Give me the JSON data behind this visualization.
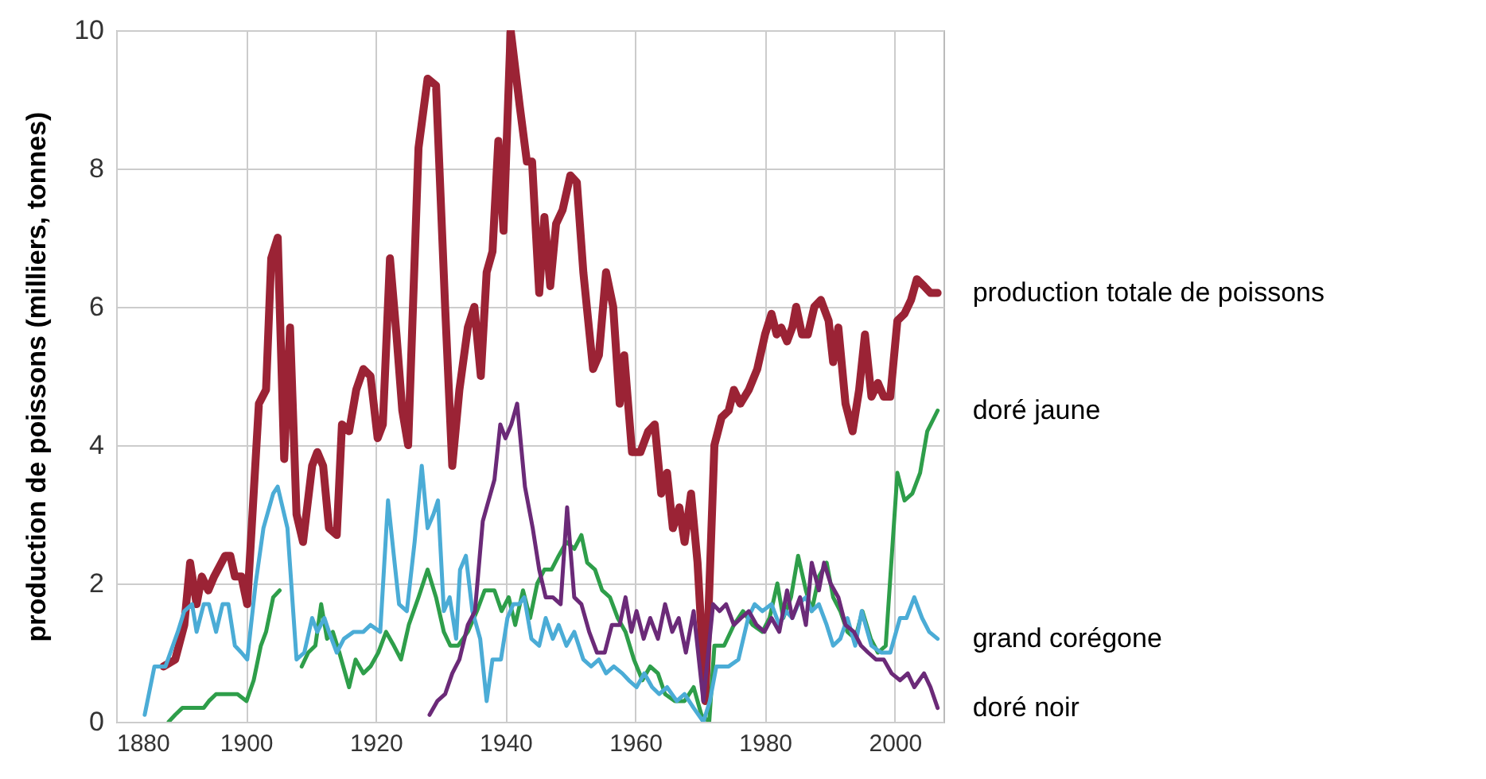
{
  "chart_data": {
    "type": "line",
    "ylabel": "production de poissons (milliers, tonnes)",
    "xlim": [
      1880,
      2007.5
    ],
    "xticks": [
      1880,
      1900,
      1920,
      1940,
      1960,
      1980,
      2000
    ],
    "ylim": [
      0,
      10
    ],
    "yticks": [
      0,
      2,
      4,
      6,
      8,
      10
    ],
    "grid": true,
    "line_style": "solid",
    "series": [
      {
        "name": "production totale de poissons",
        "color": "#9b2335",
        "x": [
          1887.3,
          1889.1,
          1890.5,
          1891.4,
          1892.4,
          1893.2,
          1894.2,
          1895.1,
          1896.8,
          1897.6,
          1898.3,
          1899.3,
          1900.2,
          1902.0,
          1903.1,
          1903.9,
          1904.9,
          1905.9,
          1906.8,
          1907.8,
          1908.8,
          1910.2,
          1911.0,
          1911.9,
          1912.8,
          1914.0,
          1914.8,
          1915.9,
          1917.0,
          1918.1,
          1919.2,
          1920.3,
          1921.1,
          1922.2,
          1923.2,
          1924.1,
          1925.0,
          1926.6,
          1928.0,
          1929.3,
          1930.7,
          1931.8,
          1932.9,
          1934.2,
          1935.2,
          1936.2,
          1937.1,
          1938.0,
          1938.9,
          1939.7,
          1940.8,
          1942.2,
          1943.3,
          1944.1,
          1945.2,
          1946.0,
          1946.9,
          1947.8,
          1948.8,
          1950.0,
          1951.0,
          1952.0,
          1953.5,
          1954.4,
          1955.5,
          1956.6,
          1957.6,
          1958.3,
          1959.5,
          1960.8,
          1962.0,
          1963.0,
          1964.0,
          1964.9,
          1965.8,
          1966.8,
          1967.6,
          1968.6,
          1969.6,
          1970.8,
          1972.2,
          1973.3,
          1974.4,
          1975.2,
          1976.2,
          1977.5,
          1978.8,
          1980.0,
          1981.0,
          1981.8,
          1982.5,
          1983.4,
          1984.2,
          1984.8,
          1985.7,
          1986.6,
          1987.6,
          1988.6,
          1989.8,
          1990.5,
          1991.3,
          1992.4,
          1993.5,
          1994.5,
          1995.4,
          1996.4,
          1997.4,
          1998.3,
          1999.3,
          2000.4,
          2001.5,
          2002.5,
          2003.4,
          2004.5,
          2005.5,
          2006.6
        ],
        "values": [
          0.8,
          0.9,
          1.4,
          2.3,
          1.7,
          2.1,
          1.9,
          2.1,
          2.4,
          2.4,
          2.1,
          2.1,
          1.7,
          4.6,
          4.8,
          6.7,
          7.0,
          3.8,
          5.7,
          3.0,
          2.6,
          3.7,
          3.9,
          3.7,
          2.8,
          2.7,
          4.3,
          4.2,
          4.8,
          5.1,
          5.0,
          4.1,
          4.3,
          6.7,
          5.6,
          4.5,
          4.0,
          8.3,
          9.3,
          9.2,
          6.0,
          3.7,
          4.8,
          5.7,
          6.0,
          5.0,
          6.5,
          6.8,
          8.4,
          7.1,
          10.0,
          8.9,
          8.1,
          8.1,
          6.2,
          7.3,
          6.3,
          7.2,
          7.4,
          7.9,
          7.8,
          6.5,
          5.1,
          5.3,
          6.5,
          6.0,
          4.6,
          5.3,
          3.9,
          3.9,
          4.2,
          4.3,
          3.3,
          3.6,
          2.8,
          3.1,
          2.6,
          3.3,
          2.3,
          0.3,
          4.0,
          4.4,
          4.5,
          4.8,
          4.6,
          4.8,
          5.1,
          5.6,
          5.9,
          5.6,
          5.7,
          5.5,
          5.7,
          6.0,
          5.6,
          5.6,
          6.0,
          6.1,
          5.8,
          5.2,
          5.7,
          4.6,
          4.2,
          4.8,
          5.6,
          4.7,
          4.9,
          4.7,
          4.7,
          5.8,
          5.9,
          6.1,
          6.4,
          6.3,
          6.2,
          6.2
        ]
      },
      {
        "name": "doré jaune",
        "color": "#2e9e4a",
        "x": [
          1888.1,
          1889.1,
          1890.2,
          1891.4,
          1892.4,
          1893.5,
          1894.3,
          1895.4,
          1896.4,
          1897.6,
          1898.7,
          1900.1,
          1901.2,
          1902.3,
          1903.1,
          1904.2,
          1905.2,
          1906.8,
          1908.6,
          1909.6,
          1910.7,
          1911.6,
          1912.5,
          1913.4,
          1914.4,
          1915.9,
          1916.9,
          1918.1,
          1919.2,
          1920.4,
          1921.6,
          1922.8,
          1923.9,
          1925.1,
          1926.6,
          1928.0,
          1929.3,
          1930.5,
          1931.5,
          1932.7,
          1934.2,
          1935.6,
          1936.8,
          1938.3,
          1939.4,
          1940.5,
          1941.5,
          1942.7,
          1943.8,
          1944.9,
          1946.0,
          1947.1,
          1948.2,
          1949.4,
          1950.6,
          1951.7,
          1952.6,
          1953.8,
          1954.9,
          1956.1,
          1957.3,
          1958.5,
          1959.8,
          1961.1,
          1962.3,
          1963.5,
          1964.6,
          1966.1,
          1967.6,
          1969.0,
          1970.2,
          1971.4,
          1972.2,
          1973.7,
          1975.2,
          1976.6,
          1978.1,
          1979.6,
          1980.7,
          1981.9,
          1982.8,
          1984.0,
          1985.1,
          1986.3,
          1987.2,
          1988.3,
          1989.5,
          1990.5,
          1991.6,
          1992.7,
          1993.9,
          1995.0,
          1996.3,
          1997.4,
          1998.6,
          2000.4,
          2001.5,
          2002.7,
          2003.9,
          2005.0,
          2006.6
        ],
        "values": [
          0.0,
          0.1,
          0.2,
          0.2,
          0.2,
          0.2,
          0.3,
          0.4,
          0.4,
          0.4,
          0.4,
          0.3,
          0.6,
          1.1,
          1.3,
          1.8,
          1.9,
          null,
          0.8,
          1.0,
          1.1,
          1.7,
          1.2,
          1.3,
          1.0,
          0.5,
          0.9,
          0.7,
          0.8,
          1.0,
          1.3,
          1.1,
          0.9,
          1.4,
          1.8,
          2.2,
          1.8,
          1.3,
          1.1,
          1.1,
          1.3,
          1.6,
          1.9,
          1.9,
          1.6,
          1.8,
          1.4,
          1.9,
          1.5,
          2.0,
          2.2,
          2.2,
          2.4,
          2.6,
          2.5,
          2.7,
          2.3,
          2.2,
          1.9,
          1.8,
          1.5,
          1.3,
          0.9,
          0.6,
          0.8,
          0.7,
          0.4,
          0.3,
          0.3,
          0.5,
          0.1,
          0.0,
          1.1,
          1.1,
          1.4,
          1.6,
          1.4,
          1.3,
          1.5,
          2.0,
          1.5,
          1.8,
          2.4,
          1.9,
          1.6,
          2.1,
          2.3,
          1.8,
          1.6,
          1.3,
          1.2,
          1.6,
          1.2,
          1.0,
          1.1,
          3.6,
          3.2,
          3.3,
          3.6,
          4.2,
          4.5
        ]
      },
      {
        "name": "grand corégone",
        "color": "#4bacd6",
        "x": [
          1884.4,
          1885.9,
          1887.6,
          1889.5,
          1890.5,
          1891.7,
          1892.4,
          1893.5,
          1894.3,
          1895.4,
          1896.4,
          1897.3,
          1898.3,
          1899.3,
          1900.2,
          1901.5,
          1902.7,
          1904.2,
          1904.9,
          1906.4,
          1907.8,
          1909.0,
          1910.2,
          1911.0,
          1912.1,
          1912.8,
          1914.0,
          1915.1,
          1916.6,
          1918.1,
          1919.2,
          1920.7,
          1921.9,
          1922.8,
          1923.6,
          1924.8,
          1926.0,
          1927.1,
          1928.0,
          1928.9,
          1929.6,
          1930.5,
          1931.4,
          1932.4,
          1933.0,
          1933.9,
          1934.9,
          1936.1,
          1937.1,
          1938.0,
          1939.3,
          1940.3,
          1941.2,
          1942.1,
          1942.9,
          1944.0,
          1945.2,
          1946.2,
          1947.3,
          1948.2,
          1949.4,
          1950.6,
          1952.0,
          1953.2,
          1954.4,
          1955.5,
          1956.7,
          1958.0,
          1959.0,
          1960.2,
          1961.4,
          1962.6,
          1963.7,
          1964.9,
          1966.4,
          1967.6,
          1969.0,
          1970.5,
          1971.5,
          1972.5,
          1974.4,
          1975.9,
          1977.4,
          1978.4,
          1979.6,
          1981.0,
          1982.2,
          1983.2,
          1984.2,
          1985.1,
          1986.3,
          1987.2,
          1988.3,
          1989.5,
          1990.5,
          1991.6,
          1992.7,
          1993.9,
          1994.9,
          1996.4,
          1997.9,
          1999.3,
          2000.8,
          2001.8,
          2003.0,
          2004.2,
          2005.3,
          2006.6
        ],
        "values": [
          0.1,
          0.8,
          0.8,
          1.3,
          1.6,
          1.7,
          1.3,
          1.7,
          1.7,
          1.3,
          1.7,
          1.7,
          1.1,
          1.0,
          0.9,
          2.0,
          2.8,
          3.3,
          3.4,
          2.8,
          0.9,
          1.0,
          1.5,
          1.3,
          1.5,
          1.3,
          1.0,
          1.2,
          1.3,
          1.3,
          1.4,
          1.3,
          3.2,
          2.4,
          1.7,
          1.6,
          2.6,
          3.7,
          2.8,
          3.0,
          3.2,
          1.6,
          1.8,
          1.2,
          2.2,
          2.4,
          1.6,
          1.2,
          0.3,
          0.9,
          0.9,
          1.5,
          1.7,
          1.7,
          1.8,
          1.2,
          1.1,
          1.5,
          1.2,
          1.4,
          1.1,
          1.3,
          0.9,
          0.8,
          0.9,
          0.7,
          0.8,
          0.7,
          0.6,
          0.5,
          0.7,
          0.5,
          0.4,
          0.5,
          0.3,
          0.4,
          0.2,
          0.0,
          0.3,
          0.8,
          0.8,
          0.9,
          1.5,
          1.7,
          1.6,
          1.7,
          1.4,
          1.6,
          1.5,
          1.7,
          1.8,
          1.6,
          1.7,
          1.4,
          1.1,
          1.2,
          1.5,
          1.1,
          1.6,
          1.1,
          1.0,
          1.0,
          1.5,
          1.5,
          1.8,
          1.5,
          1.3,
          1.2
        ]
      },
      {
        "name": "doré noir",
        "color": "#6b2a78",
        "x": [
          1928.3,
          1929.5,
          1930.7,
          1931.8,
          1932.9,
          1934.2,
          1935.3,
          1936.5,
          1937.4,
          1938.3,
          1939.2,
          1940.0,
          1940.9,
          1941.8,
          1943.0,
          1944.2,
          1945.2,
          1946.2,
          1947.3,
          1948.5,
          1949.5,
          1950.6,
          1951.7,
          1952.9,
          1954.1,
          1955.3,
          1956.4,
          1957.6,
          1958.5,
          1959.4,
          1960.2,
          1961.3,
          1962.3,
          1963.5,
          1964.6,
          1965.7,
          1966.7,
          1967.8,
          1969.0,
          1970.5,
          1972.0,
          1973.0,
          1974.0,
          1975.2,
          1976.3,
          1977.5,
          1978.7,
          1979.9,
          1981.0,
          1982.2,
          1983.4,
          1984.2,
          1985.4,
          1986.3,
          1987.2,
          1988.3,
          1989.1,
          1990.1,
          1991.3,
          1992.4,
          1993.7,
          1994.8,
          1995.9,
          1997.1,
          1998.3,
          1999.5,
          2000.8,
          2002.0,
          2003.0,
          2004.5,
          2005.5,
          2006.6
        ],
        "values": [
          0.1,
          0.3,
          0.4,
          0.7,
          0.9,
          1.4,
          1.6,
          2.9,
          3.2,
          3.5,
          4.3,
          4.1,
          4.3,
          4.6,
          3.4,
          2.8,
          2.2,
          1.8,
          1.8,
          1.7,
          3.1,
          1.8,
          1.7,
          1.3,
          1.0,
          1.0,
          1.4,
          1.4,
          1.8,
          1.3,
          1.6,
          1.2,
          1.5,
          1.2,
          1.7,
          1.3,
          1.5,
          1.0,
          1.6,
          0.3,
          1.7,
          1.6,
          1.7,
          1.4,
          1.5,
          1.6,
          1.4,
          1.3,
          1.5,
          1.3,
          1.9,
          1.5,
          1.8,
          1.4,
          2.3,
          1.9,
          2.3,
          2.0,
          1.8,
          1.4,
          1.3,
          1.1,
          1.0,
          0.9,
          0.9,
          0.7,
          0.6,
          0.7,
          0.5,
          0.7,
          0.5,
          0.2
        ]
      }
    ]
  }
}
